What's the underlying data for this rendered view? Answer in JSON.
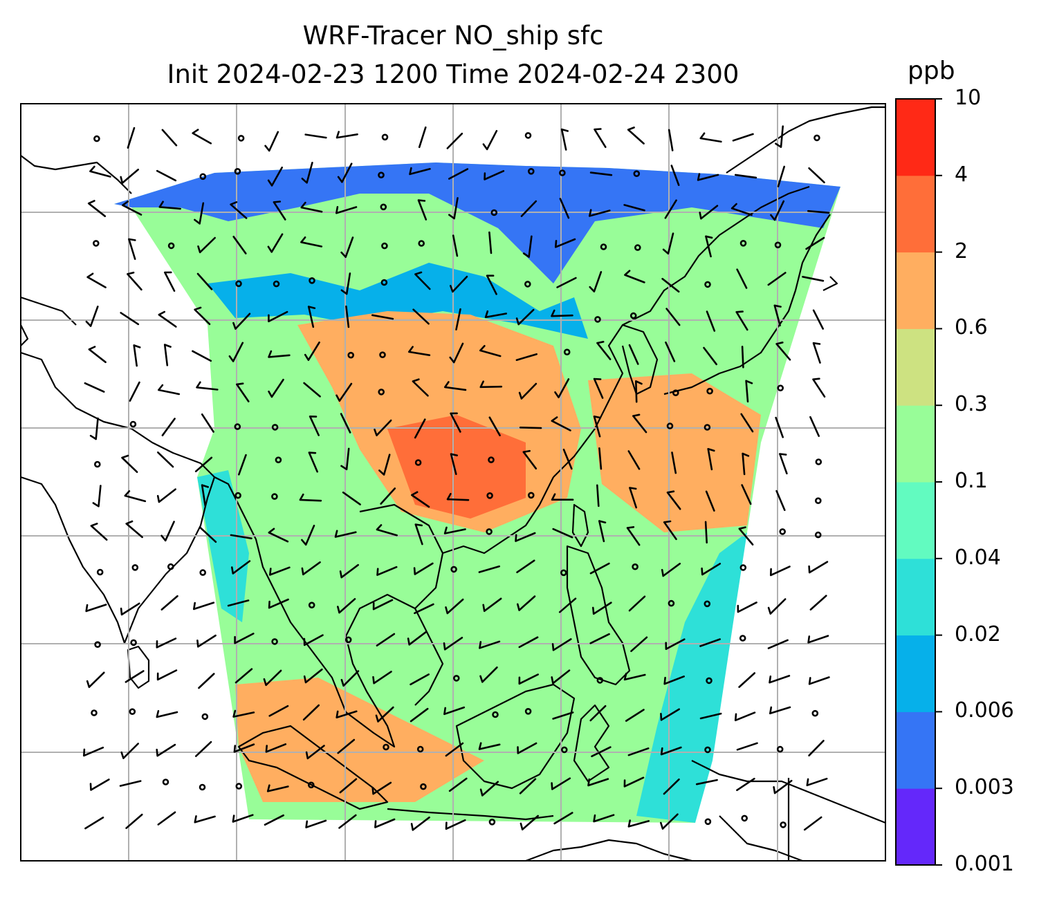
{
  "title": {
    "line1": "WRF-Tracer NO_ship sfc",
    "line2": "Init 2024-02-23 1200 Time 2024-02-24 2300"
  },
  "colorbar": {
    "unit": "ppb",
    "tick_labels": [
      "0.001",
      "0.003",
      "0.006",
      "0.02",
      "0.04",
      "0.1",
      "0.3",
      "0.6",
      "2",
      "4",
      "10"
    ],
    "colors": [
      "#6428fa",
      "#3575f5",
      "#06b0ea",
      "#2ee0d8",
      "#62fbc0",
      "#98fd98",
      "#cde281",
      "#ffae60",
      "#ff6e39",
      "#ff2916"
    ]
  },
  "map": {
    "gridlines": true,
    "gridline_color": "#b0b0b0",
    "coastline_color": "#000000",
    "no_data_color": "#ffffff",
    "overlay": "wind-barbs"
  }
}
